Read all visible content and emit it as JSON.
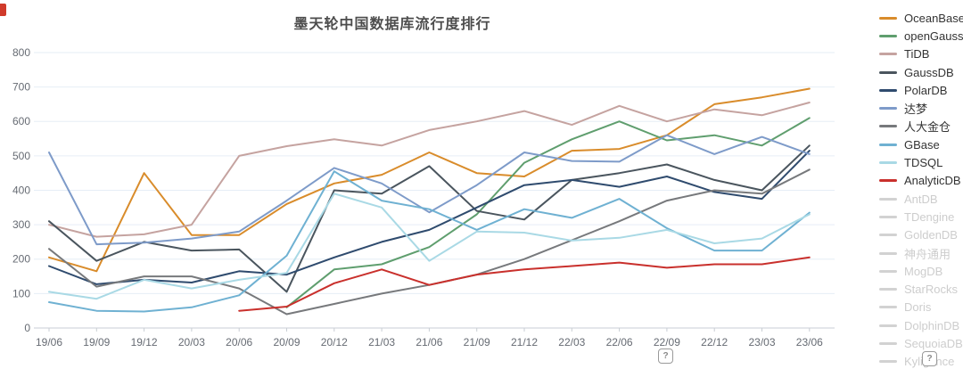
{
  "page": {
    "help_icon": "?",
    "corner_mark_color": "#d03a2b"
  },
  "chart_data": {
    "type": "line",
    "title": "墨天轮中国数据库流行度排行",
    "categories": [
      "19/06",
      "19/09",
      "19/12",
      "20/03",
      "20/06",
      "20/09",
      "20/12",
      "21/03",
      "21/06",
      "21/09",
      "21/12",
      "22/03",
      "22/06",
      "22/09",
      "22/12",
      "23/03",
      "23/06"
    ],
    "ylim": [
      0,
      800
    ],
    "ytick_step": 100,
    "grid": true,
    "legend_position": "right",
    "series": [
      {
        "name": "OceanBase",
        "color": "#D98C2B",
        "active": true,
        "values": [
          205,
          165,
          450,
          270,
          270,
          360,
          420,
          445,
          510,
          450,
          440,
          515,
          520,
          560,
          650,
          670,
          695
        ]
      },
      {
        "name": "openGauss",
        "color": "#5F9E6E",
        "active": true,
        "values": [
          null,
          null,
          null,
          null,
          null,
          60,
          170,
          185,
          235,
          330,
          480,
          548,
          600,
          545,
          560,
          530,
          610
        ]
      },
      {
        "name": "TiDB",
        "color": "#C5A3A0",
        "active": true,
        "values": [
          300,
          265,
          272,
          300,
          500,
          528,
          548,
          530,
          575,
          600,
          630,
          590,
          645,
          600,
          635,
          618,
          655
        ]
      },
      {
        "name": "GaussDB",
        "color": "#4A555E",
        "active": true,
        "values": [
          310,
          195,
          250,
          225,
          228,
          105,
          400,
          390,
          470,
          340,
          315,
          430,
          450,
          475,
          430,
          400,
          530
        ]
      },
      {
        "name": "PolarDB",
        "color": "#2F4B6E",
        "active": true,
        "values": [
          180,
          127,
          140,
          132,
          165,
          155,
          205,
          250,
          285,
          350,
          415,
          430,
          410,
          440,
          395,
          375,
          515
        ]
      },
      {
        "name": "达梦",
        "color": "#7E9BC9",
        "active": true,
        "values": [
          510,
          243,
          248,
          260,
          280,
          370,
          465,
          420,
          336,
          415,
          510,
          485,
          483,
          560,
          505,
          555,
          505
        ]
      },
      {
        "name": "人大金仓",
        "color": "#77797C",
        "active": true,
        "values": [
          230,
          120,
          150,
          150,
          115,
          40,
          70,
          100,
          125,
          155,
          200,
          255,
          310,
          370,
          400,
          390,
          460
        ]
      },
      {
        "name": "GBase",
        "color": "#6FB1D2",
        "active": true,
        "values": [
          75,
          50,
          48,
          60,
          95,
          210,
          455,
          370,
          345,
          285,
          345,
          320,
          375,
          290,
          225,
          225,
          335
        ]
      },
      {
        "name": "TDSQL",
        "color": "#A9D9E5",
        "active": true,
        "values": [
          105,
          85,
          140,
          115,
          140,
          160,
          390,
          350,
          195,
          280,
          277,
          254,
          262,
          285,
          246,
          260,
          330
        ]
      },
      {
        "name": "AnalyticDB",
        "color": "#C9302C",
        "active": true,
        "values": [
          null,
          null,
          null,
          null,
          50,
          62,
          130,
          170,
          125,
          155,
          170,
          180,
          190,
          175,
          185,
          185,
          205
        ]
      },
      {
        "name": "AntDB",
        "color": "#D2D2D2",
        "active": false,
        "values": null
      },
      {
        "name": "TDengine",
        "color": "#D2D2D2",
        "active": false,
        "values": null
      },
      {
        "name": "GoldenDB",
        "color": "#D2D2D2",
        "active": false,
        "values": null
      },
      {
        "name": "神舟通用",
        "color": "#D2D2D2",
        "active": false,
        "values": null
      },
      {
        "name": "MogDB",
        "color": "#D2D2D2",
        "active": false,
        "values": null
      },
      {
        "name": "StarRocks",
        "color": "#D2D2D2",
        "active": false,
        "values": null
      },
      {
        "name": "Doris",
        "color": "#D2D2D2",
        "active": false,
        "values": null
      },
      {
        "name": "DolphinDB",
        "color": "#D2D2D2",
        "active": false,
        "values": null
      },
      {
        "name": "SequoiaDB",
        "color": "#D2D2D2",
        "active": false,
        "values": null
      },
      {
        "name": "Kyligence",
        "color": "#D2D2D2",
        "active": false,
        "values": null
      }
    ]
  }
}
